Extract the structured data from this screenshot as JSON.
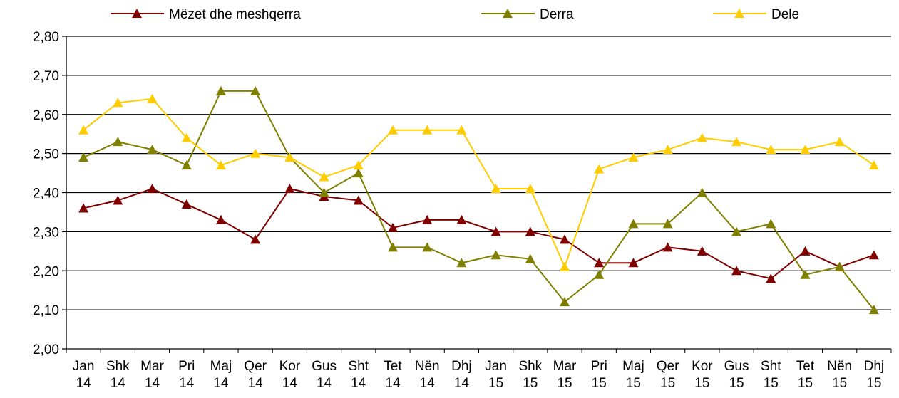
{
  "chart_data": {
    "type": "line",
    "categories": [
      "Jan 14",
      "Shk 14",
      "Mar 14",
      "Pri 14",
      "Maj 14",
      "Qer 14",
      "Kor 14",
      "Gus 14",
      "Sht 14",
      "Tet 14",
      "Nën 14",
      "Dhj 14",
      "Jan 15",
      "Shk 15",
      "Mar 15",
      "Pri 15",
      "Maj 15",
      "Qer 15",
      "Kor 15",
      "Gus 15",
      "Sht 15",
      "Tet 15",
      "Nën 15",
      "Dhj 15"
    ],
    "series": [
      {
        "name": "Mëzet dhe meshqerra",
        "color": "#800000",
        "values": [
          2.36,
          2.38,
          2.41,
          2.37,
          2.33,
          2.28,
          2.41,
          2.39,
          2.38,
          2.31,
          2.33,
          2.33,
          2.3,
          2.3,
          2.28,
          2.22,
          2.22,
          2.26,
          2.25,
          2.2,
          2.18,
          2.25,
          2.21,
          2.24
        ]
      },
      {
        "name": "Derra",
        "color": "#808000",
        "values": [
          2.49,
          2.53,
          2.51,
          2.47,
          2.66,
          2.66,
          2.49,
          2.4,
          2.45,
          2.26,
          2.26,
          2.22,
          2.24,
          2.23,
          2.12,
          2.19,
          2.32,
          2.32,
          2.4,
          2.3,
          2.32,
          2.19,
          2.21,
          2.1
        ]
      },
      {
        "name": "Dele",
        "color": "#ffcc00",
        "values": [
          2.56,
          2.63,
          2.64,
          2.54,
          2.47,
          2.5,
          2.49,
          2.44,
          2.47,
          2.56,
          2.56,
          2.56,
          2.41,
          2.41,
          2.21,
          2.46,
          2.49,
          2.51,
          2.54,
          2.53,
          2.51,
          2.51,
          2.53,
          2.47
        ]
      }
    ],
    "ylim": [
      2.0,
      2.8
    ],
    "yticks": [
      {
        "value": 2.0,
        "label": "2,00"
      },
      {
        "value": 2.1,
        "label": "2,10"
      },
      {
        "value": 2.2,
        "label": "2,20"
      },
      {
        "value": 2.3,
        "label": "2,30"
      },
      {
        "value": 2.4,
        "label": "2,40"
      },
      {
        "value": 2.5,
        "label": "2,50"
      },
      {
        "value": 2.6,
        "label": "2,60"
      },
      {
        "value": 2.7,
        "label": "2,70"
      },
      {
        "value": 2.8,
        "label": "2,80"
      }
    ],
    "grid": true,
    "legend": "top"
  }
}
